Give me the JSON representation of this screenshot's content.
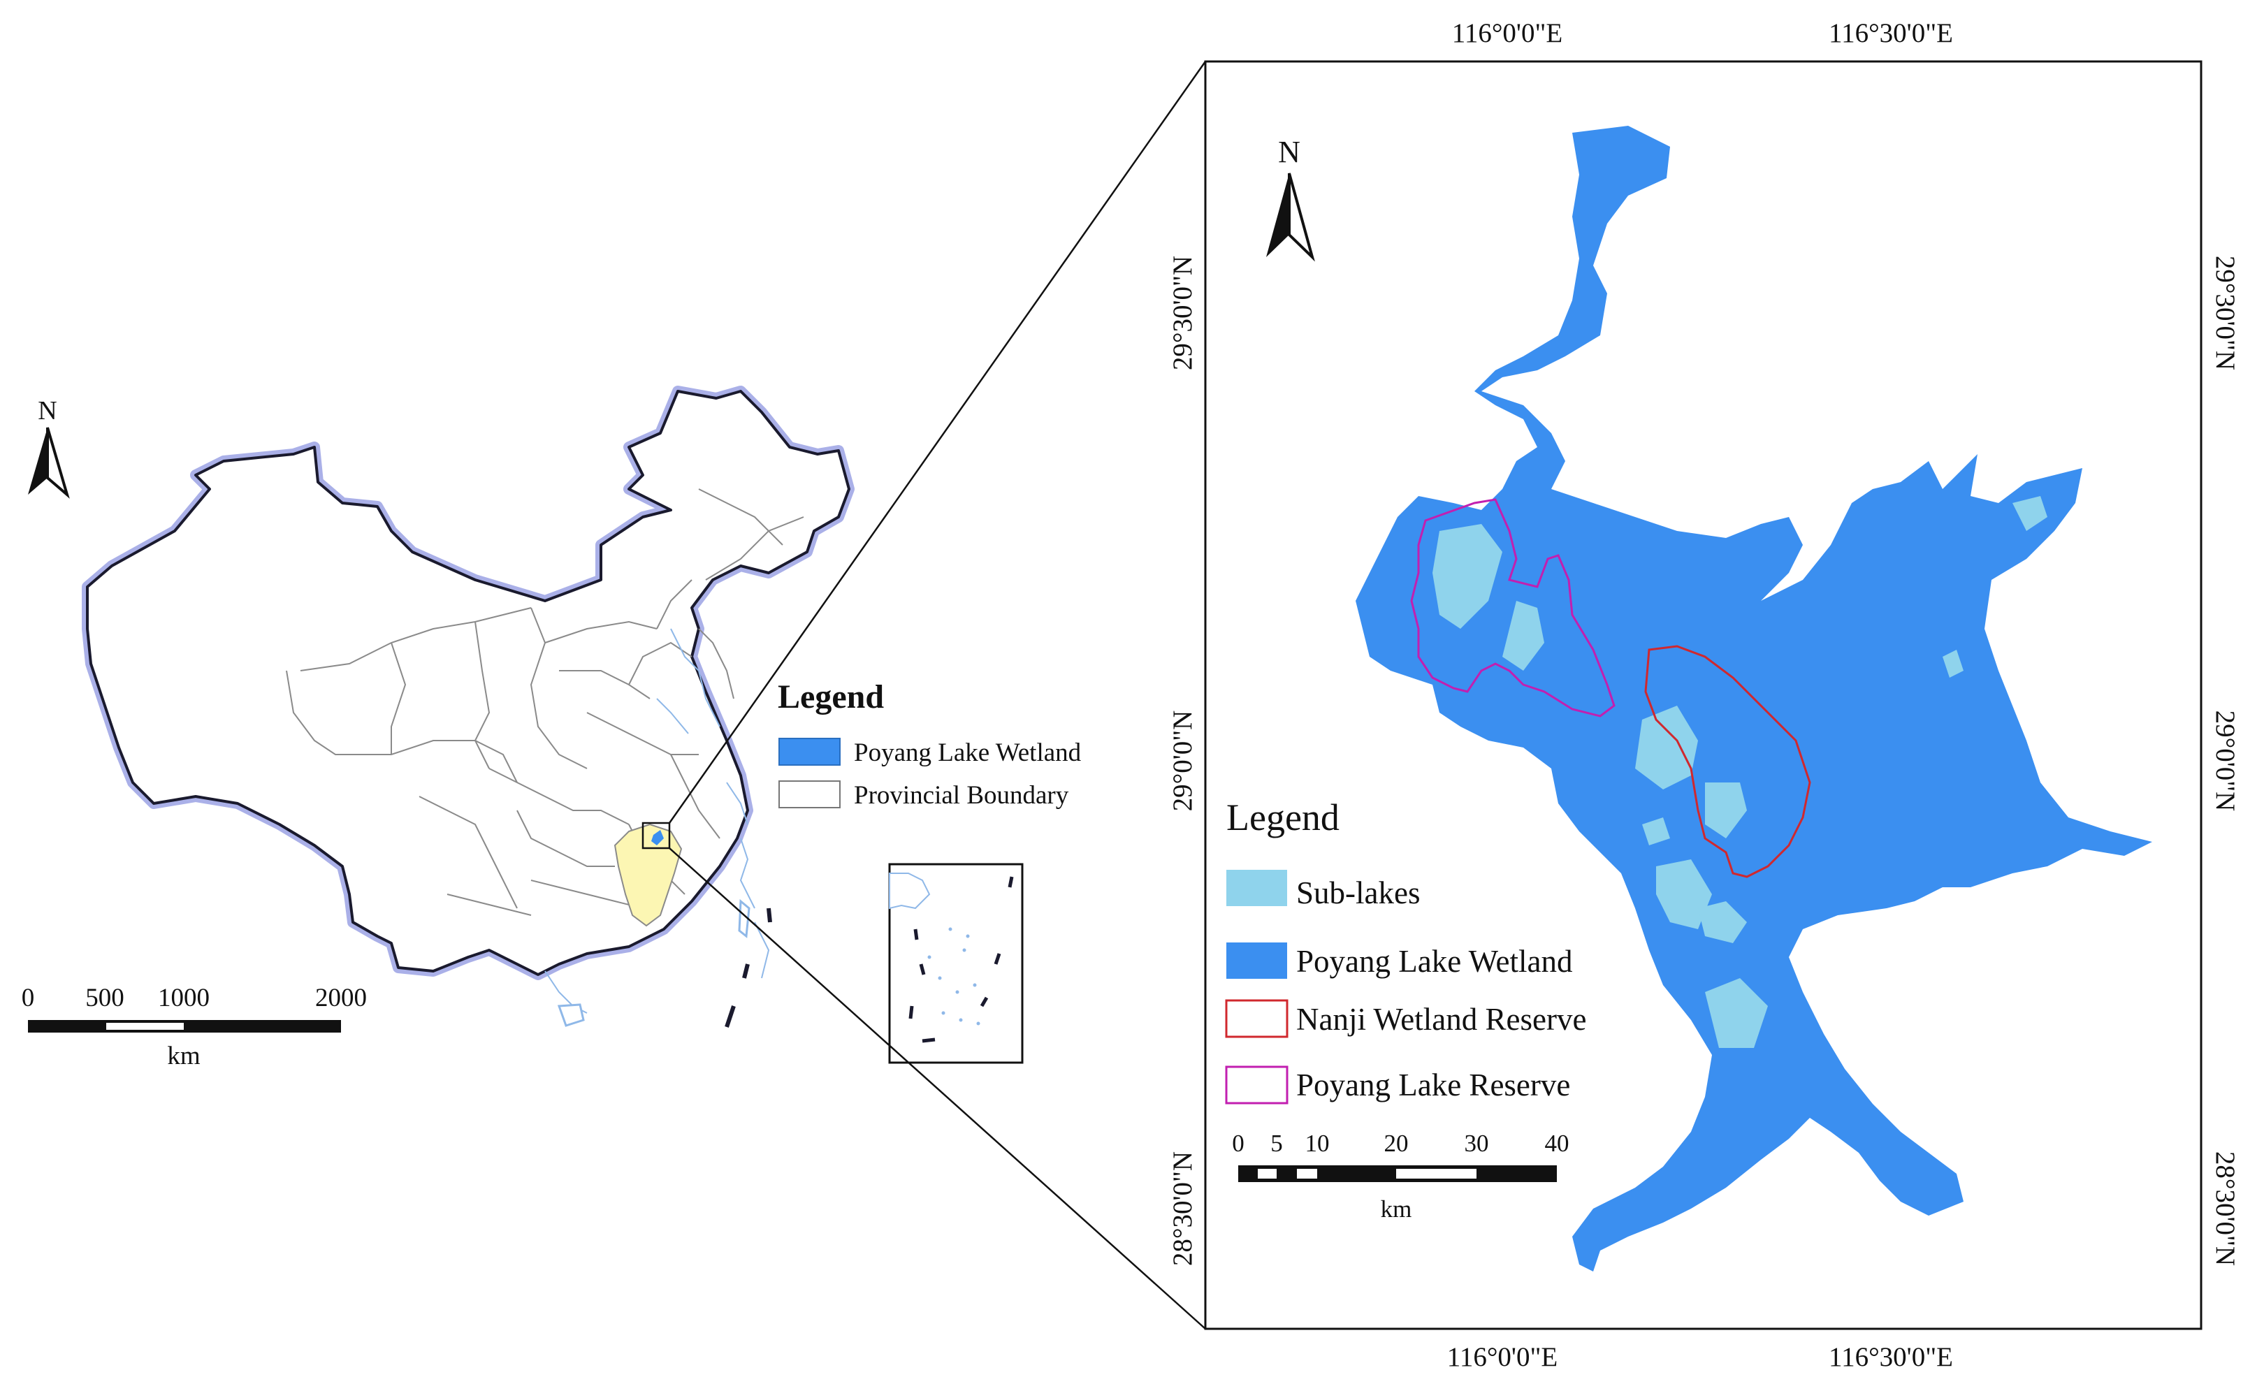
{
  "overview_map": {
    "north_label": "N",
    "legend_title": "Legend",
    "legend_items": [
      {
        "label": "Poyang Lake Wetland",
        "fill": "#3b8ff0",
        "stroke": "#2a6fc0"
      },
      {
        "label": "Provincial Boundary",
        "fill": "#ffffff",
        "stroke": "#777777"
      }
    ],
    "scale_bar": {
      "ticks": [
        "0",
        "500",
        "1000",
        "2000"
      ],
      "unit": "km"
    },
    "colors": {
      "province_highlight": "#fcf6b3",
      "national_boundary": "#1a1a2e",
      "boundary_glow": "#aab0e8",
      "rivers": "#8fb8e8"
    }
  },
  "detail_map": {
    "north_label": "N",
    "top_coordinates": [
      "116°0'0\"E",
      "116°30'0\"E"
    ],
    "bottom_coordinates": [
      "116°0'0\"E",
      "116°30'0\"E"
    ],
    "left_coordinates": [
      "29°30'0\"N",
      "29°0'0\"N",
      "28°30'0\"N"
    ],
    "right_coordinates": [
      "29°30'0\"N",
      "29°0'0\"N",
      "28°30'0\"N"
    ],
    "legend_title": "Legend",
    "legend_items": [
      {
        "label": "Sub-lakes",
        "fill": "#8fd3ec",
        "stroke": "#8fd3ec"
      },
      {
        "label": "Poyang Lake Wetland",
        "fill": "#3b8ff0",
        "stroke": "#3b8ff0"
      },
      {
        "label": "Nanji Wetland Reserve",
        "fill": "#ffffff",
        "stroke": "#d0282e"
      },
      {
        "label": "Poyang Lake Reserve",
        "fill": "#ffffff",
        "stroke": "#c21fb0"
      }
    ],
    "scale_bar": {
      "ticks": [
        "0",
        "5",
        "10",
        "20",
        "30",
        "40"
      ],
      "unit": "km"
    },
    "colors": {
      "wetland": "#3b8ff0",
      "sub_lakes": "#8fd3ec",
      "nanji_reserve": "#d0282e",
      "poyang_reserve": "#c21fb0"
    }
  }
}
